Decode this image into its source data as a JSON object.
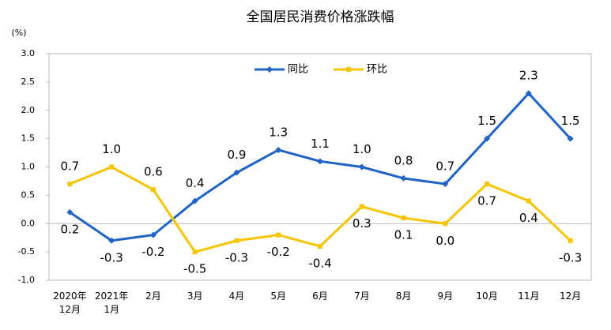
{
  "chart_data": {
    "type": "line",
    "title": "全国居民消费价格涨跌幅",
    "y_unit": "(%)",
    "categories": [
      "2020年\n12月",
      "2021年\n1月",
      "2月",
      "3月",
      "4月",
      "5月",
      "6月",
      "7月",
      "8月",
      "9月",
      "10月",
      "11月",
      "12月"
    ],
    "series": [
      {
        "name": "同比",
        "color": "#1f63c6",
        "marker": "diamond",
        "values": [
          0.2,
          -0.3,
          -0.2,
          0.4,
          0.9,
          1.3,
          1.1,
          1.0,
          0.8,
          0.7,
          1.5,
          2.3,
          1.5
        ],
        "value_labels": [
          "0.2",
          "-0.3",
          "-0.2",
          "0.4",
          "0.9",
          "1.3",
          "1.1",
          "1.0",
          "0.8",
          "0.7",
          "1.5",
          "2.3",
          "1.5"
        ]
      },
      {
        "name": "环比",
        "color": "#f5c500",
        "marker": "square",
        "values": [
          0.7,
          1.0,
          0.6,
          -0.5,
          -0.3,
          -0.2,
          -0.4,
          0.3,
          0.1,
          0.0,
          0.7,
          0.4,
          -0.3
        ],
        "value_labels": [
          "0.7",
          "1.0",
          "0.6",
          "-0.5",
          "-0.3",
          "-0.2",
          "-0.4",
          "0.3",
          "0.1",
          "0.0",
          "0.7",
          "0.4",
          "-0.3"
        ]
      }
    ],
    "ylim": [
      -1,
      3
    ],
    "yticks": [
      {
        "value": 3,
        "label": "3.0"
      },
      2.5,
      {
        "value": 2,
        "label": "2.0"
      },
      1.5,
      {
        "value": 1,
        "label": "1.0"
      },
      0.5,
      {
        "value": 0,
        "label": "0.0"
      },
      -0.5,
      {
        "value": -1,
        "label": "-1.0"
      }
    ],
    "legend": "top"
  }
}
